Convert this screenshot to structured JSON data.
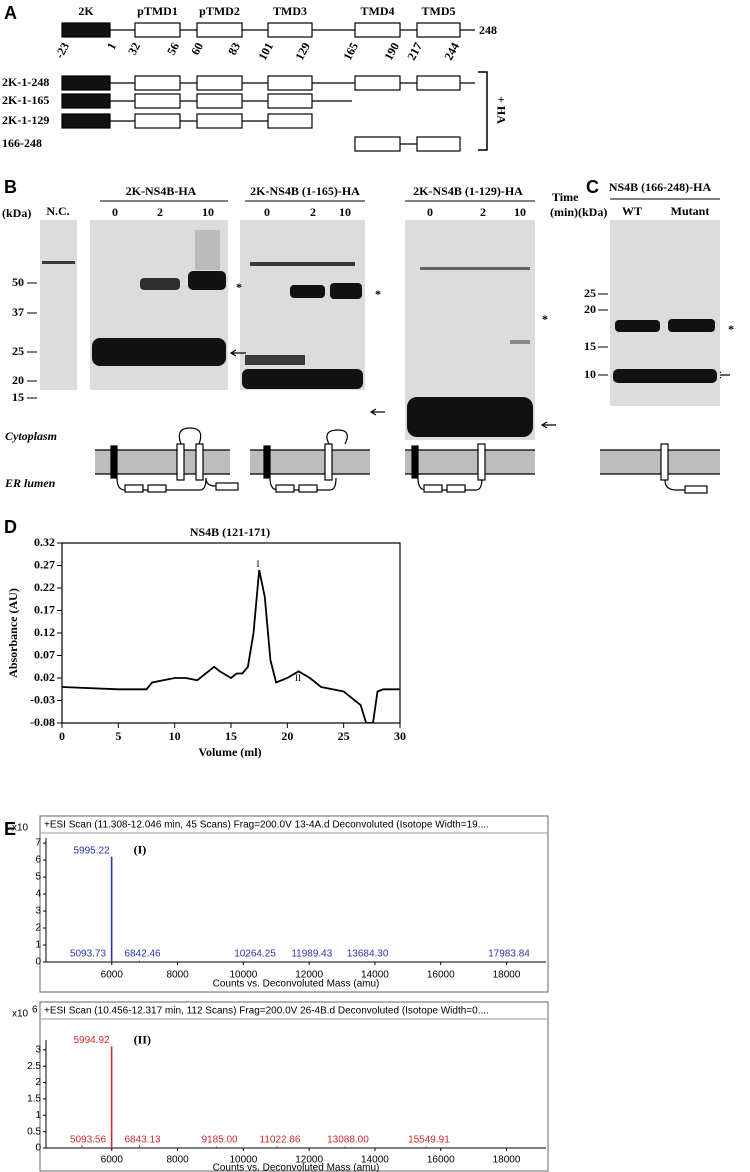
{
  "panel_a": {
    "label": "A",
    "domains": [
      "2K",
      "pTMD1",
      "pTMD2",
      "TMD3",
      "TMD4",
      "TMD5"
    ],
    "end": 248,
    "positions": [
      -23,
      1,
      32,
      56,
      60,
      83,
      101,
      129,
      165,
      190,
      217,
      244
    ],
    "constructs": [
      "2K-1-248",
      "2K-1-165",
      "2K-1-129",
      "166-248"
    ],
    "tag": "+ HA"
  },
  "panel_b": {
    "label": "B",
    "unit": "(kDa)",
    "control": "N.C.",
    "markers": [
      50,
      37,
      25,
      20,
      15
    ],
    "blots": [
      {
        "title": "2K-NS4B-HA",
        "times": [
          0,
          2,
          10
        ]
      },
      {
        "title": "2K-NS4B (1-165)-HA",
        "times": [
          0,
          2,
          10
        ]
      },
      {
        "title": "2K-NS4B (1-129)-HA",
        "times": [
          0,
          2,
          10
        ]
      }
    ],
    "time_label": "Time",
    "time_unit": "(min)",
    "star": "*",
    "cytoplasm": "Cytoplasm",
    "lumen": "ER lumen"
  },
  "panel_c": {
    "label": "C",
    "title": "NS4B (166-248)-HA",
    "unit": "(kDa)",
    "lanes": [
      "WT",
      "Mutant"
    ],
    "markers": [
      25,
      20,
      15,
      10
    ],
    "star": "*"
  },
  "panel_d_label": "D",
  "panel_e_label": "E",
  "chart_data": [
    {
      "type": "line",
      "title": "NS4B (121-171)",
      "x_label": "Volume (ml)",
      "y_label": "Absorbance (AU)",
      "x": [
        0,
        5,
        7.5,
        8,
        10,
        11,
        12,
        13,
        13.5,
        14,
        15,
        15.5,
        16,
        16.5,
        17,
        17.5,
        18,
        18.5,
        19,
        20,
        21,
        22,
        23,
        25,
        26,
        26.5,
        27,
        27.6,
        28,
        28.5,
        30
      ],
      "values": [
        0,
        -0.005,
        -0.005,
        0.01,
        0.02,
        0.02,
        0.015,
        0.035,
        0.045,
        0.035,
        0.02,
        0.03,
        0.03,
        0.045,
        0.12,
        0.26,
        0.2,
        0.06,
        0.01,
        0.02,
        0.035,
        0.02,
        0,
        -0.01,
        -0.03,
        -0.04,
        -0.08,
        -0.08,
        -0.01,
        -0.005,
        -0.005
      ],
      "color": "#000000",
      "xlim": [
        0,
        30
      ],
      "ylim": [
        -0.08,
        0.32
      ],
      "xticks": [
        0,
        5,
        10,
        15,
        20,
        25,
        30
      ],
      "yticks": [
        0.32,
        0.27,
        0.22,
        0.17,
        0.12,
        0.07,
        0.02,
        -0.03,
        -0.08
      ],
      "annotations": [
        "I",
        "II"
      ]
    },
    {
      "type": "stem",
      "title": "+ESI Scan (11.308-12.046 min, 45 Scans) Frag=200.0V 13-4A.d  Deconvoluted (Isotope Width=19....",
      "y_label": "x10",
      "x_label": "Counts vs. Deconvoluted Mass (amu)",
      "annotation": "(I)",
      "x": [
        5093.73,
        5995.22,
        6842.46,
        10264.25,
        11989.43,
        13684.3,
        17983.84
      ],
      "values": [
        0.05,
        6.2,
        0.08,
        0.03,
        0.03,
        0.03,
        0.03
      ],
      "point_labels": [
        "5093.73",
        "5995.22",
        "6842.46",
        "10264.25",
        "11989.43",
        "13684.30",
        "17983.84"
      ],
      "color": "#2a35b0",
      "xlim": [
        4000,
        19200
      ],
      "ylim": [
        0,
        7.3
      ],
      "xticks": [
        6000,
        8000,
        10000,
        12000,
        14000,
        16000,
        18000
      ],
      "yticks": [
        0,
        1,
        2,
        3,
        4,
        5,
        6,
        7
      ]
    },
    {
      "type": "stem",
      "title": "+ESI Scan (10.456-12.317 min, 112 Scans) Frag=200.0V 26-4B.d  Deconvoluted (Isotope Width=0....",
      "y_label": "x10",
      "y_exponent": "6",
      "x_label": "Counts vs. Deconvoluted Mass (amu)",
      "annotation": "(II)",
      "x": [
        5093.56,
        5994.92,
        6843.13,
        9185.0,
        11022.86,
        13088.0,
        15549.91
      ],
      "values": [
        0.1,
        3.1,
        0.1,
        0.05,
        0.05,
        0.05,
        0.05
      ],
      "point_labels": [
        "5093.56",
        "5994.92",
        "6843.13",
        "9185.00",
        "11022.86",
        "13088.00",
        "15549.91"
      ],
      "color": "#d02a2a",
      "xlim": [
        4000,
        19200
      ],
      "ylim": [
        0,
        3.3
      ],
      "xticks": [
        6000,
        8000,
        10000,
        12000,
        14000,
        16000,
        18000
      ],
      "yticks": [
        0,
        0.5,
        1,
        1.5,
        2,
        2.5,
        3
      ]
    }
  ]
}
